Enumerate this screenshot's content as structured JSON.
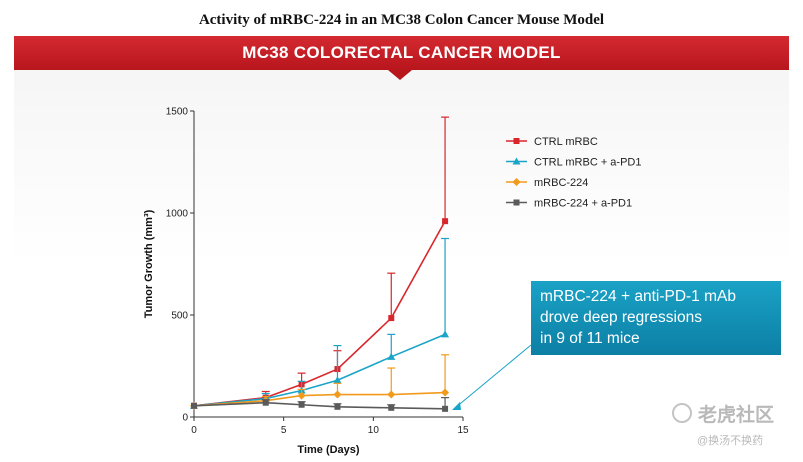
{
  "page_title": "Activity of mRBC-224 in an MC38 Colon Cancer Mouse Model",
  "banner_title": "MC38 COLORECTAL CANCER MODEL",
  "callout": {
    "lines": [
      "mRBC-224 + anti-PD-1 mAb",
      "drove deep regressions",
      "in 9 of 11 mice"
    ]
  },
  "watermark": {
    "text": "老虎社区",
    "sub": "@换汤不换药"
  },
  "colors": {
    "banner": "#c41e26",
    "callout": "#1193b8",
    "ctrl": "#d9262c",
    "ctrl_pd1": "#1aa4c8",
    "mrbc": "#f29a1c",
    "mrbc_pd1": "#5a5a5a"
  },
  "chart_data": {
    "type": "line",
    "xlabel": "Time (Days)",
    "ylabel": "Tumor Growth (mm³)",
    "xlim": [
      0,
      15
    ],
    "ylim": [
      0,
      1500
    ],
    "xticks": [
      0,
      5,
      10,
      15
    ],
    "yticks": [
      0,
      500,
      1000,
      1500
    ],
    "legend_position": "top-right",
    "series": [
      {
        "name": "CTRL mRBC",
        "marker": "square",
        "color": "#d9262c",
        "x": [
          0,
          4,
          6,
          8,
          11,
          14
        ],
        "y": [
          55,
          95,
          160,
          235,
          485,
          960
        ],
        "err": [
          0,
          30,
          55,
          90,
          220,
          510
        ]
      },
      {
        "name": "CTRL mRBC + a-PD1",
        "marker": "triangle",
        "color": "#1aa4c8",
        "x": [
          0,
          4,
          6,
          8,
          11,
          14
        ],
        "y": [
          55,
          90,
          130,
          180,
          295,
          405
        ],
        "err": [
          0,
          25,
          45,
          170,
          110,
          470
        ]
      },
      {
        "name": "mRBC-224",
        "marker": "diamond",
        "color": "#f29a1c",
        "x": [
          0,
          4,
          6,
          8,
          11,
          14
        ],
        "y": [
          55,
          80,
          105,
          110,
          110,
          120
        ],
        "err": [
          0,
          20,
          30,
          55,
          130,
          185
        ]
      },
      {
        "name": "mRBC-224 + a-PD1",
        "marker": "square",
        "color": "#5a5a5a",
        "x": [
          0,
          4,
          6,
          8,
          11,
          14
        ],
        "y": [
          55,
          70,
          60,
          50,
          45,
          40
        ],
        "err": [
          0,
          15,
          15,
          15,
          15,
          55
        ]
      }
    ]
  }
}
